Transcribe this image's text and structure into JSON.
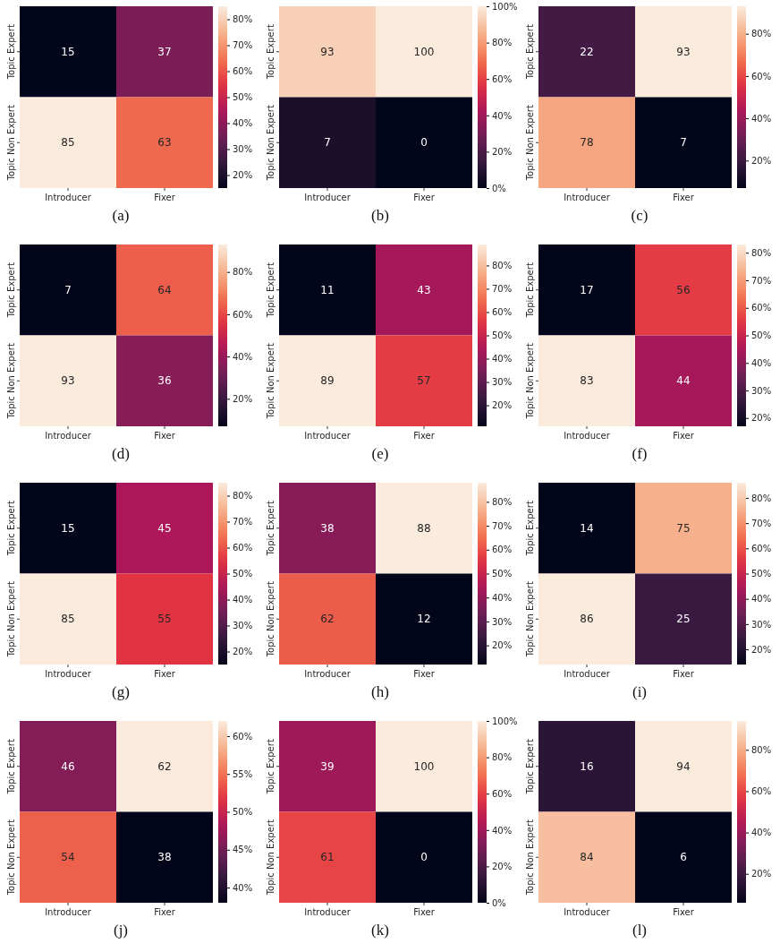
{
  "chart_data": [
    {
      "type": "heatmap",
      "title": "(a)",
      "categories": [
        "Introducer",
        "Fixer"
      ],
      "y_categories": [
        "Topic Expert",
        "Topic Non Expert"
      ],
      "cells": [
        [
          15,
          37
        ],
        [
          85,
          63
        ]
      ],
      "clim": [
        15,
        85
      ],
      "cticks": [
        {
          "value": 20,
          "label": "20%"
        },
        {
          "value": 30,
          "label": "30%"
        },
        {
          "value": 40,
          "label": "40%"
        },
        {
          "value": 50,
          "label": "50%"
        },
        {
          "value": 60,
          "label": "60%"
        },
        {
          "value": 70,
          "label": "70%"
        },
        {
          "value": 80,
          "label": "80%"
        }
      ],
      "data_labels": true
    },
    {
      "type": "heatmap",
      "title": "(b)",
      "categories": [
        "Introducer",
        "Fixer"
      ],
      "y_categories": [
        "Topic Expert",
        "Topic Non Expert"
      ],
      "cells": [
        [
          93,
          100
        ],
        [
          7,
          0
        ]
      ],
      "clim": [
        0,
        100
      ],
      "cticks": [
        {
          "value": 0,
          "label": "0%"
        },
        {
          "value": 20,
          "label": "20%"
        },
        {
          "value": 40,
          "label": "40%"
        },
        {
          "value": 60,
          "label": "60%"
        },
        {
          "value": 80,
          "label": "80%"
        },
        {
          "value": 100,
          "label": "100%"
        }
      ],
      "data_labels": true
    },
    {
      "type": "heatmap",
      "title": "(c)",
      "categories": [
        "Introducer",
        "Fixer"
      ],
      "y_categories": [
        "Topic Expert",
        "Topic Non Expert"
      ],
      "cells": [
        [
          22,
          93
        ],
        [
          78,
          7
        ]
      ],
      "clim": [
        7,
        93
      ],
      "cticks": [
        {
          "value": 20,
          "label": "20%"
        },
        {
          "value": 40,
          "label": "40%"
        },
        {
          "value": 60,
          "label": "60%"
        },
        {
          "value": 80,
          "label": "80%"
        }
      ],
      "data_labels": true
    },
    {
      "type": "heatmap",
      "title": "(d)",
      "categories": [
        "Introducer",
        "Fixer"
      ],
      "y_categories": [
        "Topic Expert",
        "Topic Non Expert"
      ],
      "cells": [
        [
          7,
          64
        ],
        [
          93,
          36
        ]
      ],
      "clim": [
        7,
        93
      ],
      "cticks": [
        {
          "value": 20,
          "label": "20%"
        },
        {
          "value": 40,
          "label": "40%"
        },
        {
          "value": 60,
          "label": "60%"
        },
        {
          "value": 80,
          "label": "80%"
        }
      ],
      "data_labels": true
    },
    {
      "type": "heatmap",
      "title": "(e)",
      "categories": [
        "Introducer",
        "Fixer"
      ],
      "y_categories": [
        "Topic Expert",
        "Topic Non Expert"
      ],
      "cells": [
        [
          11,
          43
        ],
        [
          89,
          57
        ]
      ],
      "clim": [
        11,
        89
      ],
      "cticks": [
        {
          "value": 20,
          "label": "20%"
        },
        {
          "value": 30,
          "label": "30%"
        },
        {
          "value": 40,
          "label": "40%"
        },
        {
          "value": 50,
          "label": "50%"
        },
        {
          "value": 60,
          "label": "60%"
        },
        {
          "value": 70,
          "label": "70%"
        },
        {
          "value": 80,
          "label": "80%"
        }
      ],
      "data_labels": true
    },
    {
      "type": "heatmap",
      "title": "(f)",
      "categories": [
        "Introducer",
        "Fixer"
      ],
      "y_categories": [
        "Topic Expert",
        "Topic Non Expert"
      ],
      "cells": [
        [
          17,
          56
        ],
        [
          83,
          44
        ]
      ],
      "clim": [
        17,
        83
      ],
      "cticks": [
        {
          "value": 20,
          "label": "20%"
        },
        {
          "value": 30,
          "label": "30%"
        },
        {
          "value": 40,
          "label": "40%"
        },
        {
          "value": 50,
          "label": "50%"
        },
        {
          "value": 60,
          "label": "60%"
        },
        {
          "value": 70,
          "label": "70%"
        },
        {
          "value": 80,
          "label": "80%"
        }
      ],
      "data_labels": true
    },
    {
      "type": "heatmap",
      "title": "(g)",
      "categories": [
        "Introducer",
        "Fixer"
      ],
      "y_categories": [
        "Topic Expert",
        "Topic Non Expert"
      ],
      "cells": [
        [
          15,
          45
        ],
        [
          85,
          55
        ]
      ],
      "clim": [
        15,
        85
      ],
      "cticks": [
        {
          "value": 20,
          "label": "20%"
        },
        {
          "value": 30,
          "label": "30%"
        },
        {
          "value": 40,
          "label": "40%"
        },
        {
          "value": 50,
          "label": "50%"
        },
        {
          "value": 60,
          "label": "60%"
        },
        {
          "value": 70,
          "label": "70%"
        },
        {
          "value": 80,
          "label": "80%"
        }
      ],
      "data_labels": true
    },
    {
      "type": "heatmap",
      "title": "(h)",
      "categories": [
        "Introducer",
        "Fixer"
      ],
      "y_categories": [
        "Topic Expert",
        "Topic Non Expert"
      ],
      "cells": [
        [
          38,
          88
        ],
        [
          62,
          12
        ]
      ],
      "clim": [
        12,
        88
      ],
      "cticks": [
        {
          "value": 20,
          "label": "20%"
        },
        {
          "value": 30,
          "label": "30%"
        },
        {
          "value": 40,
          "label": "40%"
        },
        {
          "value": 50,
          "label": "50%"
        },
        {
          "value": 60,
          "label": "60%"
        },
        {
          "value": 70,
          "label": "70%"
        },
        {
          "value": 80,
          "label": "80%"
        }
      ],
      "data_labels": true
    },
    {
      "type": "heatmap",
      "title": "(i)",
      "categories": [
        "Introducer",
        "Fixer"
      ],
      "y_categories": [
        "Topic Expert",
        "Topic Non Expert"
      ],
      "cells": [
        [
          14,
          75
        ],
        [
          86,
          25
        ]
      ],
      "clim": [
        14,
        86
      ],
      "cticks": [
        {
          "value": 20,
          "label": "20%"
        },
        {
          "value": 30,
          "label": "30%"
        },
        {
          "value": 40,
          "label": "40%"
        },
        {
          "value": 50,
          "label": "50%"
        },
        {
          "value": 60,
          "label": "60%"
        },
        {
          "value": 70,
          "label": "70%"
        },
        {
          "value": 80,
          "label": "80%"
        }
      ],
      "data_labels": true
    },
    {
      "type": "heatmap",
      "title": "(j)",
      "categories": [
        "Introducer",
        "Fixer"
      ],
      "y_categories": [
        "Topic Expert",
        "Topic Non Expert"
      ],
      "cells": [
        [
          46,
          62
        ],
        [
          54,
          38
        ]
      ],
      "clim": [
        38,
        62
      ],
      "cticks": [
        {
          "value": 40,
          "label": "40%"
        },
        {
          "value": 45,
          "label": "45%"
        },
        {
          "value": 50,
          "label": "50%"
        },
        {
          "value": 55,
          "label": "55%"
        },
        {
          "value": 60,
          "label": "60%"
        }
      ],
      "data_labels": true
    },
    {
      "type": "heatmap",
      "title": "(k)",
      "categories": [
        "Introducer",
        "Fixer"
      ],
      "y_categories": [
        "Topic Expert",
        "Topic Non Expert"
      ],
      "cells": [
        [
          39,
          100
        ],
        [
          61,
          0
        ]
      ],
      "clim": [
        0,
        100
      ],
      "cticks": [
        {
          "value": 0,
          "label": "0%"
        },
        {
          "value": 20,
          "label": "20%"
        },
        {
          "value": 40,
          "label": "40%"
        },
        {
          "value": 60,
          "label": "60%"
        },
        {
          "value": 80,
          "label": "80%"
        },
        {
          "value": 100,
          "label": "100%"
        }
      ],
      "data_labels": true
    },
    {
      "type": "heatmap",
      "title": "(l)",
      "categories": [
        "Introducer",
        "Fixer"
      ],
      "y_categories": [
        "Topic Expert",
        "Topic Non Expert"
      ],
      "cells": [
        [
          16,
          94
        ],
        [
          84,
          6
        ]
      ],
      "clim": [
        6,
        94
      ],
      "cticks": [
        {
          "value": 20,
          "label": "20%"
        },
        {
          "value": 40,
          "label": "40%"
        },
        {
          "value": 60,
          "label": "60%"
        },
        {
          "value": 80,
          "label": "80%"
        }
      ],
      "data_labels": true
    }
  ]
}
